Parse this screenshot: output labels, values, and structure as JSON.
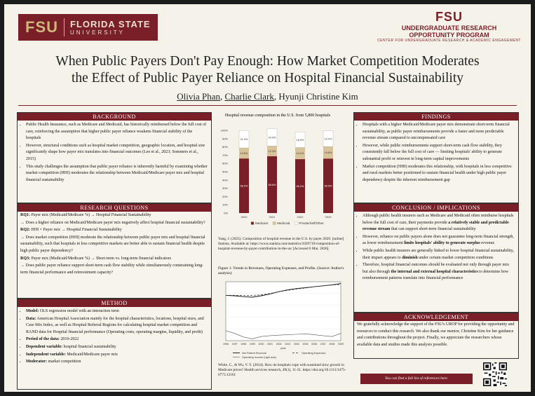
{
  "header": {
    "fsu_mono": "FSU",
    "fsu_name1": "FLORIDA STATE",
    "fsu_name2": "UNIVERSITY",
    "urop_big": "FSU",
    "urop_line1": "UNDERGRADUATE RESEARCH",
    "urop_line2": "OPPORTUNITY PROGRAM",
    "urop_line3": "CENTER FOR UNDERGRADUATE RESEARCH & ACADEMIC ENGAGEMENT"
  },
  "title_line1": "When Public Payers Don't Pay Enough: How Market Competition Moderates",
  "title_line2": "the Effect of Public Payer Reliance on Hospital Financial Sustainability",
  "authors": {
    "a1": "Olivia Phan",
    "a2": "Charlie Clark",
    "sep": ", ",
    "a3": "Hyunji Christine Kim"
  },
  "background": {
    "title": "BACKGROUND",
    "items": [
      "Public Health Insurance, such as Medicare and Medicaid, has historically reimbursed below the full cost of care, reinforcing the assumption that higher public payer reliance weakens financial stability of the hospitals",
      "However, structural conditions such as hospital market competition, geographic location, and hospital size significantly shape how payer mix translates into financial outcomes (Lee et al., 2023; Sommers et al., 2015)",
      "This study challenges the assumption that public payer reliance is inherently harmful by examining whether market competition (HHI) moderates the relationship between Medicaid/Medicare payer mix and hospital financial sustainability"
    ]
  },
  "research_questions": {
    "title": "RESEARCH QUESTIONS",
    "rq1_label": "RQ1:",
    "rq1": "Payer mix (Medicaid/Medicare %) → Hospital Financial Sustainability",
    "rq1_sub": "→ Does a higher reliance on Medicaid/Medicare payer mix negatively affect hospital financial sustainability?",
    "rq2_label": "RQ2:",
    "rq2": "HHI × Payer mix → Hospital Financial Sustainability",
    "rq2_sub": "→ Does market competition (HHI) moderate the relationship between public payer mix and hospital financial sustainability, such that hospitals in less competitive markets are better able to sustain financial health despite high public payer dependency?",
    "rq3_label": "RQ3:",
    "rq3": "Payer mix (Medicaid/Medicare %) → Short-term vs. long-term financial indicators",
    "rq3_sub": "→ Does public payer reliance support short-term cash flow stability while simultaneously constraining long-term financial performance and reinvestment capacity?"
  },
  "method": {
    "title": "METHOD",
    "items": [
      {
        "label": "Model:",
        "text": " OLS regression model with an interaction term"
      },
      {
        "label": "Data:",
        "text": " American Hospital Association mainly for the hospital characteristics, locations, hospital sizes, and Case Mix Index, as well as Hospital Referral Regions for calculating hospital market competition and RAND data for Hospital financial performance (Operating costs, operating margins, liquidity, and profit)"
      },
      {
        "label": "Period of the data:",
        "text": " 2010-2022"
      },
      {
        "label": "Dependent variable:",
        "text": " hospital financial sustainability"
      },
      {
        "label": "Independent variable:",
        "text": " Medicaid/Medicare payer mix"
      },
      {
        "label": "Moderator:",
        "text": " market competition"
      }
    ]
  },
  "chart_title": "Hospital revenue composition in the U.S. from 5,800 hospitals",
  "chart_data": [
    {
      "type": "bar",
      "stacked": true,
      "title": "Hospital revenue composition in the U.S. from 5,800 hospitals",
      "categories": [
        "2020",
        "2021",
        "2022",
        "2023"
      ],
      "series": [
        {
          "name": "Medicare",
          "values": [
            66.0,
            68.8,
            65.2,
            65.9
          ],
          "labels": [
            "66.0%",
            "68.8%",
            "65.2%",
            "65.9%"
          ]
        },
        {
          "name": "Medicaid",
          "values": [
            12.8,
            12.3,
            14.1,
            14.6
          ],
          "labels": [
            "12.8%",
            "12.3%",
            "14.1%",
            "14.6%"
          ]
        },
        {
          "name": "Private/Self/Other",
          "values": [
            21.0,
            20.9,
            18.9,
            19.0
          ],
          "labels": [
            "21.0%",
            "20.9%",
            "18.9%",
            "19.0%"
          ]
        }
      ],
      "yticks": [
        "0%",
        "10%",
        "20%",
        "30%",
        "40%",
        "50%",
        "60%",
        "70%",
        "80%",
        "90%",
        "100%"
      ],
      "ylim": [
        0,
        100
      ],
      "legend": [
        "Medicare",
        "Medicaid",
        "Private/Self/Other"
      ]
    },
    {
      "type": "line",
      "title": "Figure 1: Trends in Revenues, Operating Expenses, and Profits. (Source: Author's analysis)",
      "x": [
        "1996",
        "1997",
        "1998",
        "1999",
        "2000",
        "2001",
        "2002",
        "2003",
        "2004",
        "2005",
        "2006",
        "2007",
        "2008",
        "2009"
      ],
      "series": [
        {
          "name": "Net Patient Revenue",
          "values": [
            100,
            99,
            97,
            96,
            99,
            103,
            108,
            112,
            115,
            117,
            119,
            121,
            123,
            126
          ]
        },
        {
          "name": "Operating Expenses",
          "values": [
            100,
            100,
            100,
            100,
            101,
            104,
            108,
            111,
            114,
            116,
            119,
            121,
            123,
            124
          ]
        },
        {
          "name": "Operating Income (right axis)",
          "values": [
            22,
            16,
            8,
            4,
            9,
            11,
            12,
            13,
            14,
            15,
            13,
            11,
            9,
            16
          ]
        }
      ],
      "xlabel": "year",
      "legend": [
        "Net Patient Revenue",
        "Operating Expenses",
        "Operating Income (right axis)"
      ]
    }
  ],
  "chart_source": "Yang, J. (2025). Composition of hospital revenue in the U.S. by payer 2020. [online] Statista. Available at: https://www.statista.com/statistics/1029719/composition-of-hospital-revenue-by-payer-contribution-in-the-us/ [Accessed 6 Mar. 2026].",
  "figure_caption": "Figure 1: Trends in Revenues, Operating Expenses, and Profits. (Source: Author's analysis)",
  "figure_source": "White, C., & Wu, V. Y. (2014). How do hospitals cope with sustained slow growth in Medicare prices? Health services research, 49(1), 11-31. https://doi.org/10.1111/1475-6773.12101",
  "findings": {
    "title": "FINDINGS",
    "items": [
      "Hospitals with a higher Medicaid/Medicare payer mix demonstrate short-term financial sustainability, as public payer reimbursements provide a faster and more predictable revenue stream compared to uncompensated care",
      "However, while public reimbursements support short-term cash flow stability, they consistently fall below the full cost of care — limiting hospitals' ability to generate substantial profit or reinvest in long-term capital improvements",
      "Market competition (HHI) moderates this relationship, with hospitals in less competitive and rural markets better positioned to sustain financial health under high public payer dependency despite the inherent reimbursement gap"
    ]
  },
  "conclusion": {
    "title": "CONCLUSION / IMPLICATIONS",
    "p1a": "Although public health insurers such as Medicare and Medicaid often reimburse hospitals below the full cost of care, their payments provide ",
    "p1b": "a relatively stable and predictable revenue stream",
    "p1c": " that can support short-term financial sustainability",
    "p2a": "However, reliance on public payers alone does not guarantee long-term financial strength, as lower reimbursement ",
    "p2b": "limits hospitals' ability to generate surplus",
    "p2c": " revenue",
    "p3a": "While public health insurers are generally linked to lower hospital financial sustainability, their impact appears to ",
    "p3b": "diminish",
    "p3c": " under certain market competition conditions",
    "p4a": "Therefore, hospital financial outcomes should be evaluated not only through payer mix but also through ",
    "p4b": "the internal and external hospital characteristics",
    "p4c": " to determine how reimbursement patterns translate into financial performance"
  },
  "acknowledgement": {
    "title": "ACKNOWLEDGEMENT",
    "text": "We gratefully acknowledge the support of the FSU's UROP for providing the opportunity and resources to conduct this research. We also thank our mentor, Christine Kim for her guidance and contributions throughout the project. Finally, we appreciate the researchers whose available data and studies made this analysis possible."
  },
  "references_button": "You can find a full list of references here.",
  "colors": {
    "garnet": "#7a1f28",
    "gold": "#cdb87a",
    "tan": "#d9c39a",
    "paper": "#f5f2ea"
  }
}
